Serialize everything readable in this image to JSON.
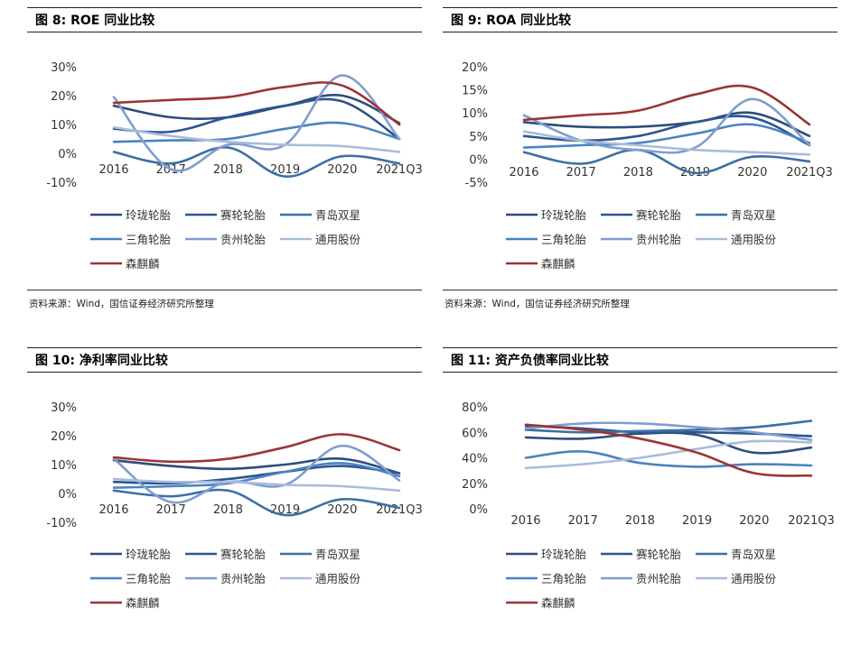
{
  "charts": [
    {
      "title": "图  8:  ROE 同业比较",
      "source": "资料来源：Wind，国信证券经济研究所整理"
    },
    {
      "title": "图  9:  ROA 同业比较",
      "source": "资料来源：Wind，国信证券经济研究所整理"
    },
    {
      "title": "图  10:  净利率同业比较",
      "source": ""
    },
    {
      "title": "图 11:  资产负债率同业比较",
      "source": ""
    }
  ],
  "chart_data": [
    {
      "type": "line",
      "title": "图  8:  ROE 同业比较",
      "categories": [
        "2016",
        "2017",
        "2018",
        "2019",
        "2020",
        "2021Q3"
      ],
      "y_ticks": [
        "30%",
        "20%",
        "10%",
        "0%",
        "-10%"
      ],
      "ylim": [
        -10,
        30
      ],
      "series": [
        {
          "name": "玲珑轮胎",
          "color": "#2e4c7e",
          "values": [
            16.5,
            12.5,
            12.5,
            16.5,
            20,
            10.5
          ]
        },
        {
          "name": "赛轮轮胎",
          "color": "#2c5590",
          "values": [
            8.5,
            7.5,
            12.5,
            16.5,
            18,
            5
          ]
        },
        {
          "name": "青岛双星",
          "color": "#3d6fa5",
          "values": [
            0.5,
            -3.5,
            2,
            -8,
            -1,
            -3.5
          ]
        },
        {
          "name": "三角轮胎",
          "color": "#4a83c0",
          "values": [
            4,
            4.5,
            5,
            8.5,
            10.5,
            5
          ]
        },
        {
          "name": "贵州轮胎",
          "color": "#7f9dd0",
          "values": [
            19.5,
            -5.5,
            3,
            3,
            27,
            5
          ]
        },
        {
          "name": "通用股份",
          "color": "#aabcdc",
          "values": [
            9,
            6,
            4,
            3,
            2.5,
            0.5
          ]
        },
        {
          "name": "森麒麟",
          "color": "#9b3535",
          "values": [
            17.5,
            18.5,
            19.5,
            23,
            23.5,
            10
          ]
        }
      ]
    },
    {
      "type": "line",
      "title": "图  9:  ROA 同业比较",
      "categories": [
        "2016",
        "2017",
        "2018",
        "2019",
        "2020",
        "2021Q3"
      ],
      "y_ticks": [
        "20%",
        "15%",
        "10%",
        "5%",
        "0%",
        "-5%"
      ],
      "ylim": [
        -5,
        20
      ],
      "series": [
        {
          "name": "玲珑轮胎",
          "color": "#2e4c7e",
          "values": [
            8,
            7,
            7,
            8,
            10,
            5
          ]
        },
        {
          "name": "赛轮轮胎",
          "color": "#2c5590",
          "values": [
            5,
            4,
            5,
            8,
            9,
            3
          ]
        },
        {
          "name": "青岛双星",
          "color": "#3d6fa5",
          "values": [
            1.5,
            -1,
            2,
            -3,
            0.5,
            -0.5
          ]
        },
        {
          "name": "三角轮胎",
          "color": "#4a83c0",
          "values": [
            2.5,
            3,
            3.5,
            5.5,
            7.5,
            3.5
          ]
        },
        {
          "name": "贵州轮胎",
          "color": "#7f9dd0",
          "values": [
            9.5,
            4,
            2,
            2.5,
            13,
            3
          ]
        },
        {
          "name": "通用股份",
          "color": "#aabcdc",
          "values": [
            6,
            4,
            3,
            2,
            1.5,
            1
          ]
        },
        {
          "name": "森麒麟",
          "color": "#9b3535",
          "values": [
            8.5,
            9.5,
            10.5,
            14,
            15.5,
            7.5
          ]
        }
      ]
    },
    {
      "type": "line",
      "title": "图  10:  净利率同业比较",
      "categories": [
        "2016",
        "2017",
        "2018",
        "2019",
        "2020",
        "2021Q3"
      ],
      "y_ticks": [
        "30%",
        "20%",
        "10%",
        "0%",
        "-10%"
      ],
      "ylim": [
        -10,
        30
      ],
      "series": [
        {
          "name": "玲珑轮胎",
          "color": "#2e4c7e",
          "values": [
            11.5,
            9.5,
            8.5,
            10,
            12,
            7
          ]
        },
        {
          "name": "赛轮轮胎",
          "color": "#2c5590",
          "values": [
            4,
            3.5,
            5,
            7.5,
            9.5,
            7
          ]
        },
        {
          "name": "青岛双星",
          "color": "#3d6fa5",
          "values": [
            1,
            -1,
            1,
            -7.5,
            -2,
            -5
          ]
        },
        {
          "name": "三角轮胎",
          "color": "#4a83c0",
          "values": [
            2,
            2.5,
            3.5,
            7.5,
            10.5,
            6
          ]
        },
        {
          "name": "贵州轮胎",
          "color": "#7f9dd0",
          "values": [
            12,
            -3,
            4,
            3,
            16.5,
            4.5
          ]
        },
        {
          "name": "通用股份",
          "color": "#aabcdc",
          "values": [
            5,
            4,
            4,
            3,
            2.5,
            1
          ]
        },
        {
          "name": "森麒麟",
          "color": "#9b3535",
          "values": [
            12.5,
            11,
            12,
            16,
            20.5,
            15
          ]
        }
      ]
    },
    {
      "type": "line",
      "title": "图 11:  资产负债率同业比较",
      "categories": [
        "2016",
        "2017",
        "2018",
        "2019",
        "2020",
        "2021Q3"
      ],
      "y_ticks": [
        "80%",
        "60%",
        "40%",
        "20%",
        "0%"
      ],
      "ylim": [
        0,
        80
      ],
      "series": [
        {
          "name": "玲珑轮胎",
          "color": "#2e4c7e",
          "values": [
            56,
            55,
            59,
            58,
            44,
            48
          ]
        },
        {
          "name": "赛轮轮胎",
          "color": "#2c5590",
          "values": [
            65,
            63,
            60,
            60,
            59,
            57
          ]
        },
        {
          "name": "青岛双星",
          "color": "#3d6fa5",
          "values": [
            62,
            60,
            61,
            62,
            64,
            69
          ]
        },
        {
          "name": "三角轮胎",
          "color": "#4a83c0",
          "values": [
            40,
            45,
            36,
            33,
            35,
            34
          ]
        },
        {
          "name": "贵州轮胎",
          "color": "#7f9dd0",
          "values": [
            63,
            67,
            67,
            64,
            60,
            54
          ]
        },
        {
          "name": "通用股份",
          "color": "#aabcdc",
          "values": [
            32,
            35,
            40,
            47,
            53,
            52
          ]
        },
        {
          "name": "森麒麟",
          "color": "#9b3535",
          "values": [
            66,
            62,
            55,
            44,
            28,
            26
          ]
        }
      ]
    }
  ]
}
